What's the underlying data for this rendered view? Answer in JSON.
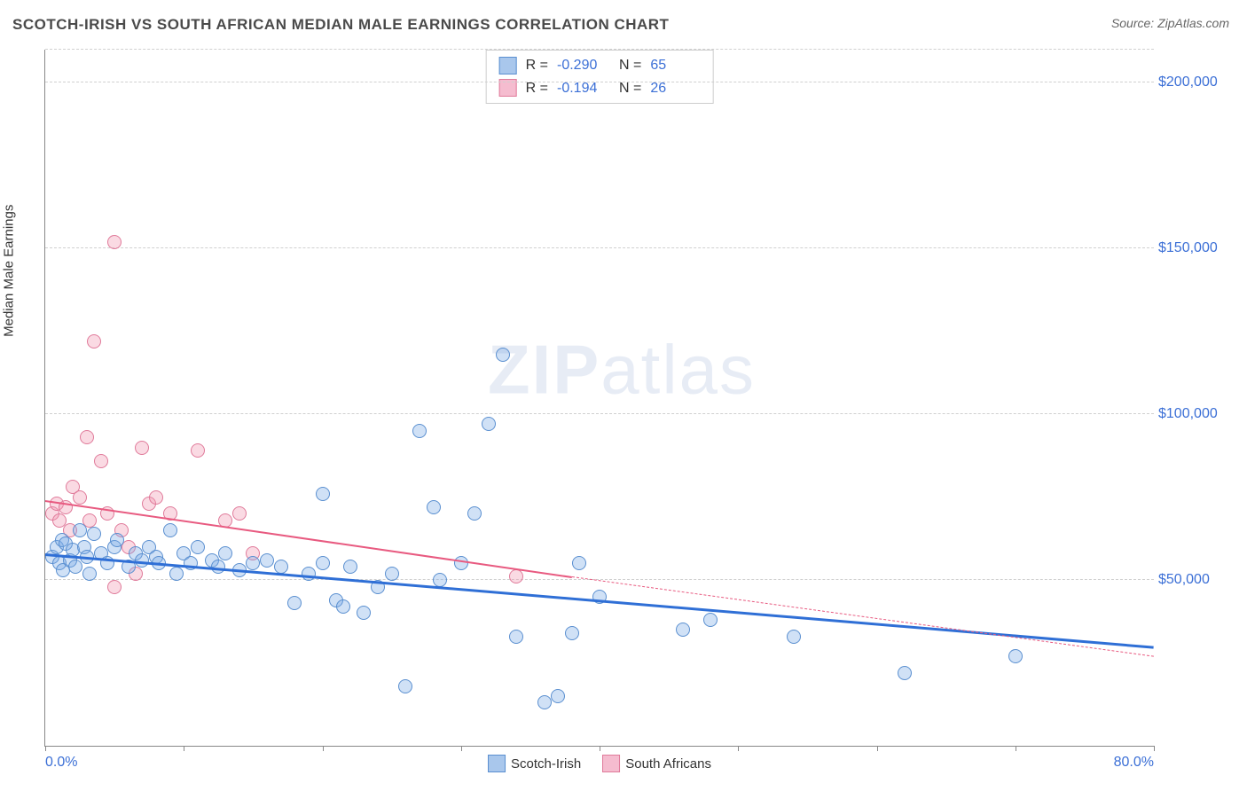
{
  "title": "SCOTCH-IRISH VS SOUTH AFRICAN MEDIAN MALE EARNINGS CORRELATION CHART",
  "source": "Source: ZipAtlas.com",
  "y_axis_label": "Median Male Earnings",
  "watermark": {
    "bold": "ZIP",
    "rest": "atlas"
  },
  "chart": {
    "type": "scatter",
    "background_color": "#ffffff",
    "grid_color": "#d0d0d0",
    "axis_color": "#888888",
    "title_fontsize": 17,
    "label_fontsize": 15,
    "tick_fontsize": 16,
    "tick_label_color": "#3b6fd6",
    "xlim": [
      0,
      80
    ],
    "ylim": [
      0,
      210000
    ],
    "x_tick_positions": [
      0,
      10,
      20,
      30,
      40,
      50,
      60,
      70,
      80
    ],
    "x_tick_labels": {
      "0": "0.0%",
      "80": "80.0%"
    },
    "y_gridlines": [
      50000,
      100000,
      150000,
      200000
    ],
    "y_tick_labels": [
      "$50,000",
      "$100,000",
      "$150,000",
      "$200,000"
    ]
  },
  "series": [
    {
      "key": "scotch_irish",
      "label": "Scotch-Irish",
      "fill_color": "rgba(120, 170, 230, 0.35)",
      "stroke_color": "#5a8fd0",
      "swatch_fill": "#a9c7ec",
      "swatch_stroke": "#5a8fd0",
      "r_value": "-0.290",
      "n_value": "65",
      "marker_radius": 8,
      "trend": {
        "color": "#2f6fd6",
        "width": 2.5,
        "solid_from": [
          0,
          58000
        ],
        "solid_to": [
          80,
          30000
        ],
        "dashed_from": null,
        "dashed_to": null
      },
      "points": [
        [
          0.5,
          57000
        ],
        [
          0.8,
          60000
        ],
        [
          1.0,
          55000
        ],
        [
          1.2,
          62000
        ],
        [
          1.3,
          53000
        ],
        [
          1.5,
          61000
        ],
        [
          1.8,
          56000
        ],
        [
          2.0,
          59000
        ],
        [
          2.2,
          54000
        ],
        [
          2.5,
          65000
        ],
        [
          2.8,
          60000
        ],
        [
          3.0,
          57000
        ],
        [
          3.2,
          52000
        ],
        [
          3.5,
          64000
        ],
        [
          4.0,
          58000
        ],
        [
          4.5,
          55000
        ],
        [
          5.0,
          60000
        ],
        [
          5.2,
          62000
        ],
        [
          6.0,
          54000
        ],
        [
          6.5,
          58000
        ],
        [
          7.0,
          56000
        ],
        [
          7.5,
          60000
        ],
        [
          8.0,
          57000
        ],
        [
          8.2,
          55000
        ],
        [
          9.0,
          65000
        ],
        [
          9.5,
          52000
        ],
        [
          10.0,
          58000
        ],
        [
          10.5,
          55000
        ],
        [
          11.0,
          60000
        ],
        [
          12.0,
          56000
        ],
        [
          12.5,
          54000
        ],
        [
          13.0,
          58000
        ],
        [
          14.0,
          53000
        ],
        [
          15.0,
          55000
        ],
        [
          16.0,
          56000
        ],
        [
          17.0,
          54000
        ],
        [
          18.0,
          43000
        ],
        [
          19.0,
          52000
        ],
        [
          20.0,
          55000
        ],
        [
          20.0,
          76000
        ],
        [
          21.0,
          44000
        ],
        [
          21.5,
          42000
        ],
        [
          22.0,
          54000
        ],
        [
          23.0,
          40000
        ],
        [
          24.0,
          48000
        ],
        [
          25.0,
          52000
        ],
        [
          26.0,
          18000
        ],
        [
          27.0,
          95000
        ],
        [
          28.0,
          72000
        ],
        [
          28.5,
          50000
        ],
        [
          30.0,
          55000
        ],
        [
          31.0,
          70000
        ],
        [
          32.0,
          97000
        ],
        [
          33.0,
          118000
        ],
        [
          34.0,
          33000
        ],
        [
          36.0,
          13000
        ],
        [
          37.0,
          15000
        ],
        [
          38.0,
          34000
        ],
        [
          38.5,
          55000
        ],
        [
          40.0,
          45000
        ],
        [
          46.0,
          35000
        ],
        [
          48.0,
          38000
        ],
        [
          54.0,
          33000
        ],
        [
          62.0,
          22000
        ],
        [
          70.0,
          27000
        ]
      ]
    },
    {
      "key": "south_africans",
      "label": "South Africans",
      "fill_color": "rgba(240, 150, 175, 0.35)",
      "stroke_color": "#e07a9a",
      "swatch_fill": "#f5bccf",
      "swatch_stroke": "#e07a9a",
      "r_value": "-0.194",
      "n_value": "26",
      "marker_radius": 8,
      "trend": {
        "color": "#e85a80",
        "width": 2,
        "solid_from": [
          0,
          74000
        ],
        "solid_to": [
          38,
          51000
        ],
        "dashed_from": [
          38,
          51000
        ],
        "dashed_to": [
          80,
          27000
        ]
      },
      "points": [
        [
          0.5,
          70000
        ],
        [
          0.8,
          73000
        ],
        [
          1.0,
          68000
        ],
        [
          1.5,
          72000
        ],
        [
          1.8,
          65000
        ],
        [
          2.0,
          78000
        ],
        [
          2.5,
          75000
        ],
        [
          3.0,
          93000
        ],
        [
          3.2,
          68000
        ],
        [
          3.5,
          122000
        ],
        [
          4.0,
          86000
        ],
        [
          4.5,
          70000
        ],
        [
          5.0,
          48000
        ],
        [
          5.0,
          152000
        ],
        [
          5.5,
          65000
        ],
        [
          6.0,
          60000
        ],
        [
          6.5,
          52000
        ],
        [
          7.0,
          90000
        ],
        [
          7.5,
          73000
        ],
        [
          8.0,
          75000
        ],
        [
          9.0,
          70000
        ],
        [
          11.0,
          89000
        ],
        [
          13.0,
          68000
        ],
        [
          14.0,
          70000
        ],
        [
          15.0,
          58000
        ],
        [
          34.0,
          51000
        ]
      ]
    }
  ],
  "legend_top": {
    "r_label": "R =",
    "n_label": "N ="
  },
  "bottom_legend": [
    {
      "series": "scotch_irish"
    },
    {
      "series": "south_africans"
    }
  ]
}
